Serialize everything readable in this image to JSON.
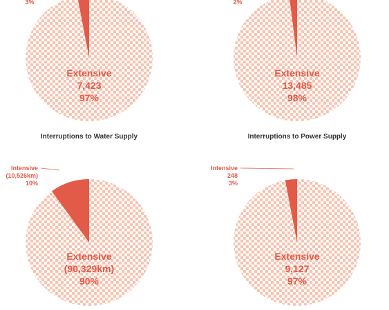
{
  "colors": {
    "intensive": "#e25a48",
    "extensive_dots": "#f5c3b0",
    "label": "#e25a48",
    "leader": "#e8836f",
    "title": "#333333"
  },
  "chart_data": [
    {
      "type": "pie",
      "title": "",
      "slices": [
        {
          "key": "intensive",
          "lines": [
            "3%"
          ],
          "value": 3
        },
        {
          "key": "extensive",
          "lines": [
            "Extensive",
            "7,423",
            "97%"
          ],
          "value": 97
        }
      ]
    },
    {
      "type": "pie",
      "title": "",
      "slices": [
        {
          "key": "intensive",
          "lines": [
            "2%"
          ],
          "value": 2
        },
        {
          "key": "extensive",
          "lines": [
            "Extensive",
            "13,485",
            "98%"
          ],
          "value": 98
        }
      ]
    },
    {
      "type": "pie",
      "title": "Interruptions to Water Supply",
      "slices": [
        {
          "key": "intensive",
          "lines": [
            "Intensive",
            "(10,526km)",
            "10%"
          ],
          "value": 10
        },
        {
          "key": "extensive",
          "lines": [
            "Extensive",
            "(90,329km)",
            "90%"
          ],
          "value": 90
        }
      ]
    },
    {
      "type": "pie",
      "title": "Interruptions to Power Supply",
      "slices": [
        {
          "key": "intensive",
          "lines": [
            "Intensive",
            "248",
            "3%"
          ],
          "value": 3
        },
        {
          "key": "extensive",
          "lines": [
            "Extensive",
            "9,127",
            "97%"
          ],
          "value": 97
        }
      ]
    }
  ]
}
